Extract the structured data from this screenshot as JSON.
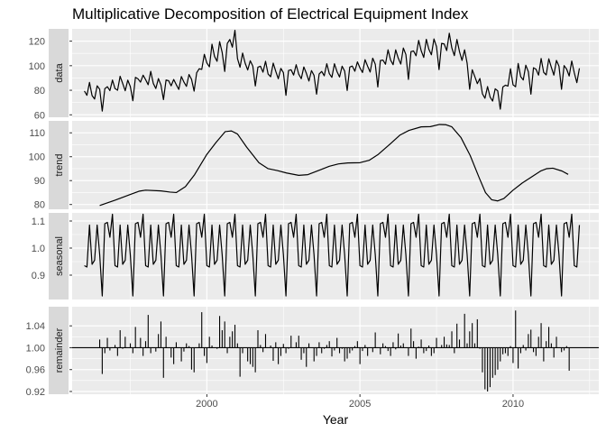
{
  "chart_data": {
    "type": "line",
    "title": "Multiplicative Decomposition of Electrical Equipment Index",
    "xlabel": "Year",
    "x_ticks": [
      2000,
      2005,
      2010
    ],
    "xlim": [
      1995.6,
      2012.8
    ],
    "background": "#ebebeb",
    "strip_color": "#d9d9d9",
    "grid": true,
    "panels": [
      {
        "name": "data",
        "ylim": [
          58,
          130
        ],
        "y_ticks": [
          60,
          80,
          100,
          120
        ],
        "kind": "line",
        "x": [
          1996.0,
          1996.083,
          1996.167,
          1996.25,
          1996.333,
          1996.417,
          1996.5,
          1996.583,
          1996.667,
          1996.75,
          1996.833,
          1996.917,
          1997.0,
          1997.083,
          1997.167,
          1997.25,
          1997.333,
          1997.417,
          1997.5,
          1997.583,
          1997.667,
          1997.75,
          1997.833,
          1997.917,
          1998.0,
          1998.083,
          1998.167,
          1998.25,
          1998.333,
          1998.417,
          1998.5,
          1998.583,
          1998.667,
          1998.75,
          1998.833,
          1998.917,
          1999.0,
          1999.083,
          1999.167,
          1999.25,
          1999.333,
          1999.417,
          1999.5,
          1999.583,
          1999.667,
          1999.75,
          1999.833,
          1999.917,
          2000.0,
          2000.083,
          2000.167,
          2000.25,
          2000.333,
          2000.417,
          2000.5,
          2000.583,
          2000.667,
          2000.75,
          2000.833,
          2000.917,
          2001.0,
          2001.083,
          2001.167,
          2001.25,
          2001.333,
          2001.417,
          2001.5,
          2001.583,
          2001.667,
          2001.75,
          2001.833,
          2001.917,
          2002.0,
          2002.083,
          2002.167,
          2002.25,
          2002.333,
          2002.417,
          2002.5,
          2002.583,
          2002.667,
          2002.75,
          2002.833,
          2002.917,
          2003.0,
          2003.083,
          2003.167,
          2003.25,
          2003.333,
          2003.417,
          2003.5,
          2003.583,
          2003.667,
          2003.75,
          2003.833,
          2003.917,
          2004.0,
          2004.083,
          2004.167,
          2004.25,
          2004.333,
          2004.417,
          2004.5,
          2004.583,
          2004.667,
          2004.75,
          2004.833,
          2004.917,
          2005.0,
          2005.083,
          2005.167,
          2005.25,
          2005.333,
          2005.417,
          2005.5,
          2005.583,
          2005.667,
          2005.75,
          2005.833,
          2005.917,
          2006.0,
          2006.083,
          2006.167,
          2006.25,
          2006.333,
          2006.417,
          2006.5,
          2006.583,
          2006.667,
          2006.75,
          2006.833,
          2006.917,
          2007.0,
          2007.083,
          2007.167,
          2007.25,
          2007.333,
          2007.417,
          2007.5,
          2007.583,
          2007.667,
          2007.75,
          2007.833,
          2007.917,
          2008.0,
          2008.083,
          2008.167,
          2008.25,
          2008.333,
          2008.417,
          2008.5,
          2008.583,
          2008.667,
          2008.75,
          2008.833,
          2008.917,
          2009.0,
          2009.083,
          2009.167,
          2009.25,
          2009.333,
          2009.417,
          2009.5,
          2009.583,
          2009.667,
          2009.75,
          2009.833,
          2009.917,
          2010.0,
          2010.083,
          2010.167,
          2010.25,
          2010.333,
          2010.417,
          2010.5,
          2010.583,
          2010.667,
          2010.75,
          2010.833,
          2010.917,
          2011.0,
          2011.083,
          2011.167,
          2011.25,
          2011.333,
          2011.417,
          2011.5,
          2011.583,
          2011.667,
          2011.75,
          2011.833,
          2011.917,
          2012.0,
          2012.083,
          2012.167
        ],
        "y": [
          79.4,
          75.9,
          86.4,
          75.7,
          72.9,
          83.6,
          80.8,
          63.0,
          81.3,
          82.9,
          79.7,
          88.3,
          81.4,
          80.0,
          91.4,
          85.6,
          79.6,
          88.2,
          83.1,
          71.5,
          90.5,
          89.3,
          86.6,
          92.3,
          88.6,
          84.5,
          95.4,
          85.6,
          81.4,
          89.5,
          84.3,
          72.4,
          88.3,
          87.8,
          83.6,
          88.8,
          84.6,
          80.7,
          91.2,
          86.7,
          83.2,
          92.8,
          88.9,
          79.3,
          94.2,
          97.5,
          97.0,
          109.3,
          102.2,
          99.1,
          117.5,
          107.6,
          103.6,
          119.6,
          110.8,
          95.3,
          118.1,
          121.4,
          115.1,
          128.8,
          105.8,
          98.7,
          110.3,
          102.1,
          96.5,
          104.0,
          99.7,
          83.5,
          98.8,
          99.6,
          94.7,
          103.6,
          93.2,
          91.0,
          102.1,
          95.4,
          89.4,
          97.8,
          94.3,
          75.9,
          96.1,
          96.7,
          92.4,
          100.8,
          93.1,
          89.4,
          99.0,
          93.8,
          87.5,
          96.0,
          92.1,
          76.8,
          93.2,
          95.3,
          91.8,
          101.6,
          93.5,
          90.5,
          101.6,
          95.2,
          90.8,
          99.6,
          95.6,
          79.8,
          98.9,
          99.7,
          95.5,
          103.1,
          98.2,
          94.5,
          104.9,
          99.6,
          94.8,
          106.1,
          101.2,
          82.7,
          104.2,
          104.6,
          101.2,
          112.9,
          104.6,
          100.8,
          112.9,
          106.2,
          101.3,
          114.4,
          109.1,
          88.8,
          111.5,
          112.0,
          108.1,
          120.6,
          112.2,
          106.7,
          121.5,
          113.4,
          108.9,
          121.8,
          115.5,
          96.8,
          118.2,
          117.7,
          112.3,
          126.4,
          114.5,
          108.2,
          121.4,
          111.5,
          104.3,
          112.9,
          102.0,
          80.8,
          96.7,
          91.2,
          85.4,
          89.6,
          77.1,
          73.5,
          83.0,
          74.5,
          71.2,
          81.2,
          79.5,
          64.6,
          82.7,
          84.1,
          83.4,
          97.5,
          84.4,
          82.9,
          101.8,
          91.1,
          88.4,
          100.4,
          95.1,
          76.8,
          98.3,
          97.1,
          92.3,
          105.9,
          94.6,
          92.5,
          105.6,
          98.7,
          92.3,
          104.3,
          99.6,
          80.8,
          100.1,
          97.2,
          91.6,
          103.8,
          94.2,
          86.2,
          97.9
        ]
      },
      {
        "name": "trend",
        "ylim": [
          78,
          115
        ],
        "y_ticks": [
          80,
          90,
          100,
          110
        ],
        "kind": "line",
        "x": [
          1996.5,
          1997.0,
          1997.5,
          1997.8,
          1998.0,
          1998.5,
          1998.8,
          1999.0,
          1999.3,
          1999.6,
          2000.0,
          2000.3,
          2000.6,
          2000.8,
          2001.0,
          2001.3,
          2001.7,
          2002.0,
          2002.3,
          2002.6,
          2003.0,
          2003.3,
          2003.7,
          2004.0,
          2004.3,
          2004.6,
          2005.0,
          2005.3,
          2005.6,
          2006.0,
          2006.3,
          2006.6,
          2007.0,
          2007.3,
          2007.6,
          2007.8,
          2008.0,
          2008.3,
          2008.6,
          2008.9,
          2009.1,
          2009.3,
          2009.5,
          2009.7,
          2010.0,
          2010.3,
          2010.6,
          2010.9,
          2011.1,
          2011.3,
          2011.6,
          2011.8
        ],
        "y": [
          79.6,
          81.8,
          84.2,
          85.6,
          86.0,
          85.7,
          85.2,
          85.0,
          87.5,
          92.5,
          101.0,
          106.0,
          110.5,
          110.8,
          109.5,
          104.0,
          97.5,
          95.0,
          94.2,
          93.2,
          92.2,
          92.5,
          94.5,
          96.0,
          97.0,
          97.4,
          97.5,
          98.5,
          101.0,
          105.5,
          109.0,
          111.0,
          112.5,
          112.6,
          113.5,
          113.4,
          112.5,
          108.0,
          100.5,
          91.0,
          85.0,
          82.0,
          81.5,
          82.5,
          86.0,
          89.0,
          91.5,
          94.0,
          95.0,
          95.2,
          94.0,
          92.6
        ]
      },
      {
        "name": "seasonal",
        "ylim": [
          0.81,
          1.13
        ],
        "y_ticks": [
          0.9,
          1.0,
          1.1
        ],
        "kind": "line",
        "pattern": [
          0.935,
          0.93,
          1.085,
          0.94,
          0.955,
          1.085,
          0.975,
          0.823,
          1.09,
          1.095,
          1.04,
          1.125
        ],
        "x_start": 1996.0,
        "x_end": 2012.167
      },
      {
        "name": "remainder",
        "ylim": [
          0.915,
          1.075
        ],
        "y_ticks": [
          0.92,
          0.96,
          1.0,
          1.04
        ],
        "baseline": 1.0,
        "kind": "bar",
        "x": [
          1996.5,
          1996.583,
          1996.667,
          1996.75,
          1996.833,
          1996.917,
          1997.0,
          1997.083,
          1997.167,
          1997.25,
          1997.333,
          1997.417,
          1997.5,
          1997.583,
          1997.667,
          1997.75,
          1997.833,
          1997.917,
          1998.0,
          1998.083,
          1998.167,
          1998.25,
          1998.333,
          1998.417,
          1998.5,
          1998.583,
          1998.667,
          1998.75,
          1998.833,
          1998.917,
          1999.0,
          1999.083,
          1999.167,
          1999.25,
          1999.333,
          1999.417,
          1999.5,
          1999.583,
          1999.667,
          1999.75,
          1999.833,
          1999.917,
          2000.0,
          2000.083,
          2000.167,
          2000.25,
          2000.333,
          2000.417,
          2000.5,
          2000.583,
          2000.667,
          2000.75,
          2000.833,
          2000.917,
          2001.0,
          2001.083,
          2001.167,
          2001.25,
          2001.333,
          2001.417,
          2001.5,
          2001.583,
          2001.667,
          2001.75,
          2001.833,
          2001.917,
          2002.0,
          2002.083,
          2002.167,
          2002.25,
          2002.333,
          2002.417,
          2002.5,
          2002.583,
          2002.667,
          2002.75,
          2002.833,
          2002.917,
          2003.0,
          2003.083,
          2003.167,
          2003.25,
          2003.333,
          2003.417,
          2003.5,
          2003.583,
          2003.667,
          2003.75,
          2003.833,
          2003.917,
          2004.0,
          2004.083,
          2004.167,
          2004.25,
          2004.333,
          2004.417,
          2004.5,
          2004.583,
          2004.667,
          2004.75,
          2004.833,
          2004.917,
          2005.0,
          2005.083,
          2005.167,
          2005.25,
          2005.333,
          2005.417,
          2005.5,
          2005.583,
          2005.667,
          2005.75,
          2005.833,
          2005.917,
          2006.0,
          2006.083,
          2006.167,
          2006.25,
          2006.333,
          2006.417,
          2006.5,
          2006.583,
          2006.667,
          2006.75,
          2006.833,
          2006.917,
          2007.0,
          2007.083,
          2007.167,
          2007.25,
          2007.333,
          2007.417,
          2007.5,
          2007.583,
          2007.667,
          2007.75,
          2007.833,
          2007.917,
          2008.0,
          2008.083,
          2008.167,
          2008.25,
          2008.333,
          2008.417,
          2008.5,
          2008.583,
          2008.667,
          2008.75,
          2008.833,
          2008.917,
          2009.0,
          2009.083,
          2009.167,
          2009.25,
          2009.333,
          2009.417,
          2009.5,
          2009.583,
          2009.667,
          2009.75,
          2009.833,
          2009.917,
          2010.0,
          2010.083,
          2010.167,
          2010.25,
          2010.333,
          2010.417,
          2010.5,
          2010.583,
          2010.667,
          2010.75,
          2010.833,
          2010.917,
          2011.0,
          2011.083,
          2011.167,
          2011.25,
          2011.333,
          2011.417,
          2011.5,
          2011.583,
          2011.667,
          2011.75,
          2011.833
        ],
        "y": [
          1.015,
          0.952,
          0.99,
          1.018,
          0.995,
          1.0,
          1.005,
          0.985,
          1.032,
          0.998,
          1.02,
          1.0,
          1.008,
          0.99,
          1.038,
          1.0,
          1.018,
          0.985,
          1.012,
          1.06,
          0.99,
          1.0,
          0.993,
          1.025,
          1.048,
          0.945,
          1.02,
          1.0,
          0.982,
          0.97,
          1.01,
          1.0,
          0.975,
          0.993,
          1.008,
          1.003,
          0.96,
          0.955,
          1.0,
          1.008,
          1.065,
          0.985,
          0.972,
          1.02,
          1.004,
          1.0,
          0.998,
          1.058,
          1.032,
          1.048,
          0.99,
          1.02,
          1.03,
          1.042,
          1.008,
          0.947,
          0.99,
          1.0,
          0.975,
          0.97,
          0.965,
          0.955,
          1.032,
          1.005,
          0.992,
          1.025,
          1.0,
          1.004,
          0.976,
          1.01,
          0.97,
          0.985,
          1.007,
          0.99,
          0.998,
          1.022,
          1.0,
          1.01,
          1.022,
          0.978,
          0.99,
          0.965,
          1.008,
          1.0,
          0.975,
          0.985,
          1.01,
          0.99,
          0.998,
          1.005,
          1.012,
          0.984,
          0.995,
          1.018,
          0.99,
          0.998,
          0.975,
          0.98,
          0.99,
          0.995,
          1.003,
          1.012,
          0.97,
          0.994,
          1.005,
          0.985,
          1.0,
          0.992,
          1.028,
          1.0,
          0.988,
          1.008,
          1.003,
          0.994,
          0.985,
          1.01,
          0.997,
          1.026,
          1.004,
          1.008,
          1.0,
          0.985,
          1.035,
          1.012,
          0.98,
          1.002,
          1.015,
          0.99,
          0.994,
          1.004,
          0.985,
          0.99,
          1.018,
          1.0,
          1.005,
          1.02,
          1.006,
          1.005,
          1.03,
          0.99,
          1.044,
          1.015,
          1.0,
          1.062,
          1.008,
          1.03,
          1.045,
          1.008,
          1.052,
          0.998,
          0.955,
          0.924,
          0.92,
          0.928,
          0.945,
          0.95,
          0.96,
          0.975,
          0.988,
          0.99,
          0.985,
          1.003,
          0.972,
          1.068,
          0.962,
          0.99,
          1.005,
          0.995,
          1.025,
          1.033,
          0.992,
          0.985,
          1.02,
          1.045,
          0.975,
          1.012,
          1.038,
          1.008,
          0.982,
          1.02,
          1.0,
          0.992,
          0.995,
          1.003,
          0.958
        ]
      }
    ]
  }
}
